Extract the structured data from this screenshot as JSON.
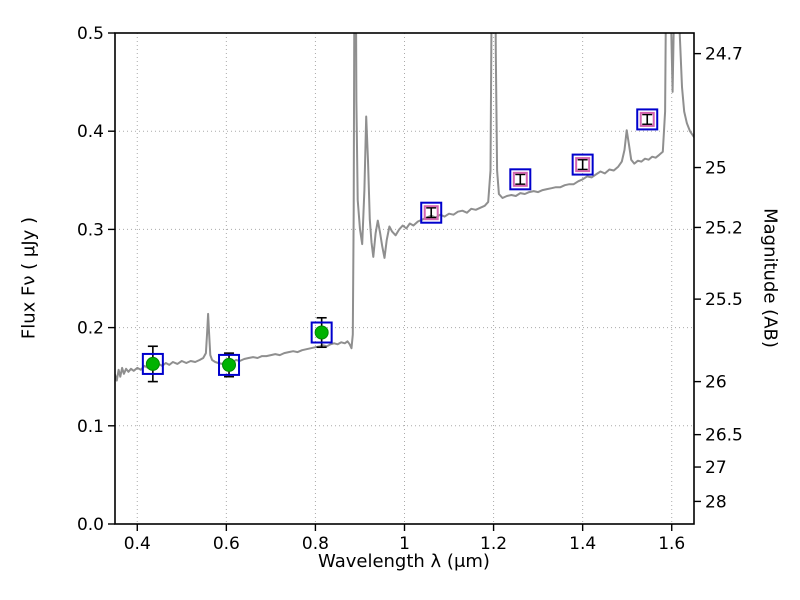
{
  "figure": {
    "background": "#ffffff"
  },
  "chart_data": {
    "type": "line",
    "title": "",
    "xlabel": "Wavelength  λ (μm)",
    "ylabel": "Flux  Fν  ( μJy )",
    "ylabel_right": "Magnitude (AB)",
    "xlim": [
      0.35,
      1.65
    ],
    "ylim": [
      0.0,
      0.5
    ],
    "grid": {
      "show": true,
      "style": "dotted",
      "color": "#aaaaaa"
    },
    "x_ticks": [
      {
        "value": 0.4,
        "label": "0.4"
      },
      {
        "value": 0.6,
        "label": "0.6"
      },
      {
        "value": 0.8,
        "label": "0.8"
      },
      {
        "value": 1.0,
        "label": "1"
      },
      {
        "value": 1.2,
        "label": "1.2"
      },
      {
        "value": 1.4,
        "label": "1.4"
      },
      {
        "value": 1.6,
        "label": "1.6"
      }
    ],
    "y_ticks_left": [
      {
        "value": 0.0,
        "label": "0.0"
      },
      {
        "value": 0.1,
        "label": "0.1"
      },
      {
        "value": 0.2,
        "label": "0.2"
      },
      {
        "value": 0.3,
        "label": "0.3"
      },
      {
        "value": 0.4,
        "label": "0.4"
      },
      {
        "value": 0.5,
        "label": "0.5"
      }
    ],
    "y_ticks_right": [
      {
        "label": "24.7",
        "flux": 0.479
      },
      {
        "label": "25",
        "flux": 0.363
      },
      {
        "label": "25.2",
        "flux": 0.302
      },
      {
        "label": "25.5",
        "flux": 0.229
      },
      {
        "label": "26",
        "flux": 0.145
      },
      {
        "label": "26.5",
        "flux": 0.091
      },
      {
        "label": "27",
        "flux": 0.058
      },
      {
        "label": "28",
        "flux": 0.023
      }
    ],
    "series": [
      {
        "name": "model-spectrum",
        "kind": "line",
        "color": "#8f8f8f",
        "linewidth": 2,
        "points": [
          [
            0.35,
            0.152
          ],
          [
            0.354,
            0.146
          ],
          [
            0.358,
            0.157
          ],
          [
            0.362,
            0.15
          ],
          [
            0.366,
            0.159
          ],
          [
            0.37,
            0.153
          ],
          [
            0.375,
            0.158
          ],
          [
            0.38,
            0.155
          ],
          [
            0.386,
            0.158
          ],
          [
            0.392,
            0.156
          ],
          [
            0.4,
            0.159
          ],
          [
            0.408,
            0.157
          ],
          [
            0.416,
            0.161
          ],
          [
            0.424,
            0.159
          ],
          [
            0.432,
            0.162
          ],
          [
            0.44,
            0.16
          ],
          [
            0.448,
            0.163
          ],
          [
            0.456,
            0.161
          ],
          [
            0.464,
            0.164
          ],
          [
            0.472,
            0.162
          ],
          [
            0.48,
            0.165
          ],
          [
            0.49,
            0.163
          ],
          [
            0.5,
            0.166
          ],
          [
            0.51,
            0.164
          ],
          [
            0.52,
            0.166
          ],
          [
            0.53,
            0.165
          ],
          [
            0.54,
            0.167
          ],
          [
            0.548,
            0.169
          ],
          [
            0.554,
            0.174
          ],
          [
            0.557,
            0.196
          ],
          [
            0.559,
            0.214
          ],
          [
            0.561,
            0.196
          ],
          [
            0.564,
            0.172
          ],
          [
            0.568,
            0.167
          ],
          [
            0.575,
            0.165
          ],
          [
            0.582,
            0.164
          ],
          [
            0.59,
            0.163
          ],
          [
            0.598,
            0.165
          ],
          [
            0.606,
            0.166
          ],
          [
            0.614,
            0.165
          ],
          [
            0.622,
            0.167
          ],
          [
            0.63,
            0.166
          ],
          [
            0.64,
            0.168
          ],
          [
            0.65,
            0.169
          ],
          [
            0.66,
            0.17
          ],
          [
            0.67,
            0.169
          ],
          [
            0.68,
            0.171
          ],
          [
            0.69,
            0.171
          ],
          [
            0.7,
            0.172
          ],
          [
            0.71,
            0.173
          ],
          [
            0.72,
            0.172
          ],
          [
            0.73,
            0.174
          ],
          [
            0.74,
            0.175
          ],
          [
            0.75,
            0.176
          ],
          [
            0.76,
            0.175
          ],
          [
            0.77,
            0.177
          ],
          [
            0.78,
            0.178
          ],
          [
            0.79,
            0.179
          ],
          [
            0.8,
            0.18
          ],
          [
            0.81,
            0.181
          ],
          [
            0.818,
            0.182
          ],
          [
            0.826,
            0.181
          ],
          [
            0.834,
            0.183
          ],
          [
            0.842,
            0.184
          ],
          [
            0.85,
            0.183
          ],
          [
            0.858,
            0.185
          ],
          [
            0.866,
            0.184
          ],
          [
            0.872,
            0.186
          ],
          [
            0.877,
            0.183
          ],
          [
            0.881,
            0.179
          ],
          [
            0.884,
            0.193
          ],
          [
            0.886,
            0.32
          ],
          [
            0.888,
            0.62
          ],
          [
            0.89,
            0.65
          ],
          [
            0.892,
            0.43
          ],
          [
            0.895,
            0.33
          ],
          [
            0.9,
            0.3
          ],
          [
            0.905,
            0.285
          ],
          [
            0.91,
            0.34
          ],
          [
            0.914,
            0.415
          ],
          [
            0.918,
            0.37
          ],
          [
            0.922,
            0.31
          ],
          [
            0.926,
            0.287
          ],
          [
            0.93,
            0.272
          ],
          [
            0.935,
            0.296
          ],
          [
            0.94,
            0.309
          ],
          [
            0.945,
            0.297
          ],
          [
            0.95,
            0.283
          ],
          [
            0.955,
            0.271
          ],
          [
            0.96,
            0.289
          ],
          [
            0.966,
            0.303
          ],
          [
            0.972,
            0.298
          ],
          [
            0.98,
            0.294
          ],
          [
            0.988,
            0.3
          ],
          [
            0.996,
            0.304
          ],
          [
            1.004,
            0.301
          ],
          [
            1.012,
            0.306
          ],
          [
            1.02,
            0.304
          ],
          [
            1.03,
            0.308
          ],
          [
            1.04,
            0.31
          ],
          [
            1.05,
            0.312
          ],
          [
            1.06,
            0.314
          ],
          [
            1.07,
            0.312
          ],
          [
            1.08,
            0.315
          ],
          [
            1.09,
            0.313
          ],
          [
            1.1,
            0.316
          ],
          [
            1.11,
            0.315
          ],
          [
            1.12,
            0.318
          ],
          [
            1.13,
            0.319
          ],
          [
            1.14,
            0.317
          ],
          [
            1.15,
            0.321
          ],
          [
            1.16,
            0.32
          ],
          [
            1.17,
            0.322
          ],
          [
            1.18,
            0.324
          ],
          [
            1.188,
            0.328
          ],
          [
            1.193,
            0.36
          ],
          [
            1.196,
            0.56
          ],
          [
            1.199,
            0.72
          ],
          [
            1.202,
            0.7
          ],
          [
            1.205,
            0.48
          ],
          [
            1.208,
            0.36
          ],
          [
            1.212,
            0.336
          ],
          [
            1.22,
            0.332
          ],
          [
            1.23,
            0.334
          ],
          [
            1.24,
            0.335
          ],
          [
            1.25,
            0.334
          ],
          [
            1.26,
            0.337
          ],
          [
            1.27,
            0.336
          ],
          [
            1.28,
            0.338
          ],
          [
            1.29,
            0.339
          ],
          [
            1.3,
            0.338
          ],
          [
            1.31,
            0.34
          ],
          [
            1.32,
            0.341
          ],
          [
            1.33,
            0.342
          ],
          [
            1.34,
            0.343
          ],
          [
            1.35,
            0.343
          ],
          [
            1.36,
            0.345
          ],
          [
            1.37,
            0.346
          ],
          [
            1.38,
            0.346
          ],
          [
            1.39,
            0.349
          ],
          [
            1.4,
            0.351
          ],
          [
            1.41,
            0.354
          ],
          [
            1.42,
            0.353
          ],
          [
            1.43,
            0.356
          ],
          [
            1.44,
            0.359
          ],
          [
            1.45,
            0.357
          ],
          [
            1.46,
            0.361
          ],
          [
            1.47,
            0.36
          ],
          [
            1.48,
            0.364
          ],
          [
            1.488,
            0.369
          ],
          [
            1.494,
            0.381
          ],
          [
            1.499,
            0.401
          ],
          [
            1.504,
            0.386
          ],
          [
            1.509,
            0.371
          ],
          [
            1.516,
            0.367
          ],
          [
            1.524,
            0.37
          ],
          [
            1.532,
            0.369
          ],
          [
            1.54,
            0.372
          ],
          [
            1.548,
            0.371
          ],
          [
            1.556,
            0.374
          ],
          [
            1.564,
            0.373
          ],
          [
            1.572,
            0.376
          ],
          [
            1.58,
            0.379
          ],
          [
            1.585,
            0.42
          ],
          [
            1.589,
            0.64
          ],
          [
            1.592,
            0.76
          ],
          [
            1.596,
            0.69
          ],
          [
            1.599,
            0.5
          ],
          [
            1.602,
            0.44
          ],
          [
            1.605,
            0.52
          ],
          [
            1.608,
            0.7
          ],
          [
            1.611,
            0.78
          ],
          [
            1.614,
            0.64
          ],
          [
            1.618,
            0.5
          ],
          [
            1.623,
            0.445
          ],
          [
            1.628,
            0.42
          ],
          [
            1.634,
            0.408
          ],
          [
            1.641,
            0.4
          ],
          [
            1.65,
            0.394
          ]
        ]
      },
      {
        "name": "optical-photometry",
        "kind": "scatter",
        "marker": "filled-circle",
        "fill": "#00b300",
        "outer_square_color": "#0000cc",
        "errorbar_color": "#000000",
        "points": [
          {
            "x": 0.435,
            "y": 0.163,
            "yerr": 0.018
          },
          {
            "x": 0.606,
            "y": 0.162,
            "yerr": 0.012
          },
          {
            "x": 0.814,
            "y": 0.195,
            "yerr": 0.015
          }
        ]
      },
      {
        "name": "infrared-photometry",
        "kind": "scatter",
        "marker": "open-square",
        "edge": "#d465b0",
        "outer_square_color": "#0000cc",
        "errorbar_color": "#000000",
        "points": [
          {
            "x": 1.06,
            "y": 0.317,
            "yerr": 0.005
          },
          {
            "x": 1.26,
            "y": 0.351,
            "yerr": 0.005
          },
          {
            "x": 1.4,
            "y": 0.366,
            "yerr": 0.005
          },
          {
            "x": 1.545,
            "y": 0.412,
            "yerr": 0.005
          }
        ]
      }
    ]
  }
}
